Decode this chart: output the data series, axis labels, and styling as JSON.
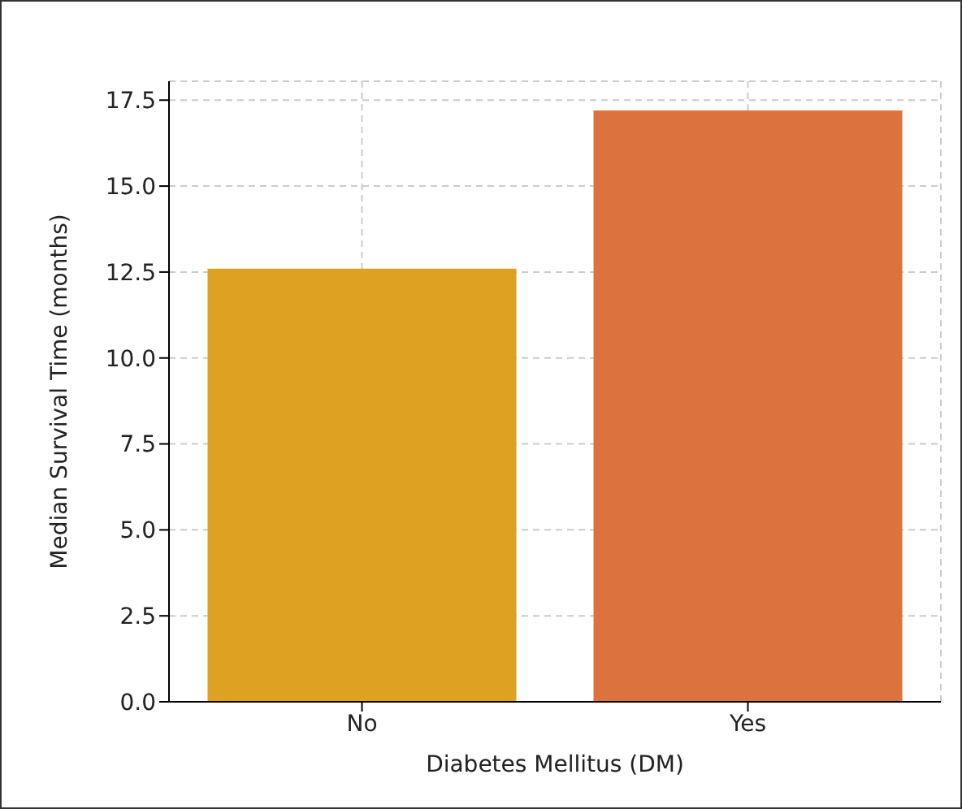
{
  "chart_data": {
    "type": "bar",
    "xlabel": "Diabetes Mellitus (DM)",
    "ylabel": "Median Survival Time (months)",
    "categories": [
      "No",
      "Yes"
    ],
    "values": [
      12.6,
      17.2
    ],
    "colors": [
      "#dda222",
      "#dc723e"
    ],
    "ylim": [
      0,
      18.05
    ],
    "yticks": [
      {
        "value": 0,
        "label": "0.0"
      },
      {
        "value": 2.5,
        "label": "2.5"
      },
      {
        "value": 5,
        "label": "5.0"
      },
      {
        "value": 7.5,
        "label": "7.5"
      },
      {
        "value": 10,
        "label": "10.0"
      },
      {
        "value": 12.5,
        "label": "12.5"
      },
      {
        "value": 15,
        "label": "15.0"
      },
      {
        "value": 17.5,
        "label": "17.5"
      }
    ],
    "grid": true
  }
}
